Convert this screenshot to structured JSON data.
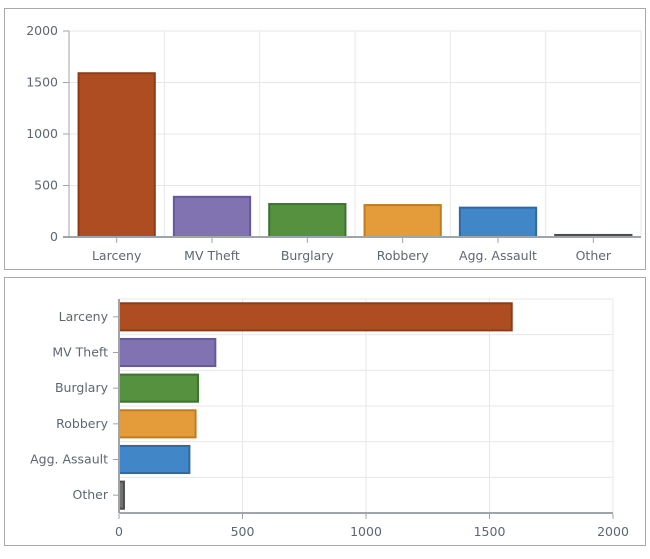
{
  "style": {
    "panel_border_color": "#a8a8a8",
    "axis_color": "#9fa4a9",
    "grid_color": "#e7e7e7",
    "label_color": "#5d6771",
    "plot_background": "#ffffff"
  },
  "chart_data": [
    {
      "type": "bar",
      "orientation": "vertical",
      "title": "",
      "xlabel": "",
      "ylabel": "",
      "categories": [
        "Larceny",
        "MV Theft",
        "Burglary",
        "Robbery",
        "Agg. Assault",
        "Other"
      ],
      "values": [
        1590,
        390,
        320,
        310,
        285,
        20
      ],
      "bar_fills": [
        "#ad4d21",
        "#8172b2",
        "#55913e",
        "#e39c39",
        "#4186c7",
        "#737373"
      ],
      "bar_strokes": [
        "#8c3d17",
        "#67589e",
        "#3e7230",
        "#bf7d21",
        "#2f69a3",
        "#4d4d4d"
      ],
      "ylim": [
        0,
        2000
      ],
      "yticks": [
        0,
        500,
        1000,
        1500,
        2000
      ],
      "grid": true,
      "legend": false
    },
    {
      "type": "bar",
      "orientation": "horizontal",
      "title": "",
      "xlabel": "",
      "ylabel": "",
      "categories": [
        "Larceny",
        "MV Theft",
        "Burglary",
        "Robbery",
        "Agg. Assault",
        "Other"
      ],
      "values": [
        1590,
        390,
        320,
        310,
        285,
        20
      ],
      "bar_fills": [
        "#ad4d21",
        "#8172b2",
        "#55913e",
        "#e39c39",
        "#4186c7",
        "#737373"
      ],
      "bar_strokes": [
        "#8c3d17",
        "#67589e",
        "#3e7230",
        "#bf7d21",
        "#2f69a3",
        "#4d4d4d"
      ],
      "xlim": [
        0,
        2000
      ],
      "xticks": [
        0,
        500,
        1000,
        1500,
        2000
      ],
      "grid": true,
      "legend": false
    }
  ]
}
